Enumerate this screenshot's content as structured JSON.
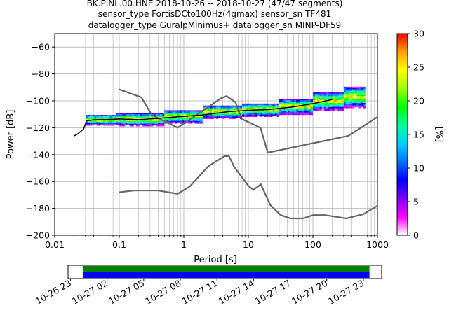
{
  "title_lines": [
    "BK.PINL.00.HNE   2018-10-26 -- 2018-10-27  (47/47 segments)",
    "sensor_type FortisDCto100Hz(4gmax) sensor_sn TF481",
    "datalogger_type GuralpMinimus+ datalogger_sn MINP-DF59"
  ],
  "chart_data": {
    "type": "heatmap",
    "xlabel": "Period [s]",
    "ylabel": "Power [dB]",
    "xscale": "log",
    "xlim": [
      0.01,
      1000
    ],
    "ylim": [
      -200,
      -50
    ],
    "x_ticks": [
      {
        "value": 0.01,
        "label": "0.01"
      },
      {
        "value": 0.1,
        "label": "0.1"
      },
      {
        "value": 1,
        "label": "1"
      },
      {
        "value": 10,
        "label": "10"
      },
      {
        "value": 100,
        "label": "100"
      },
      {
        "value": 1000,
        "label": "1000"
      }
    ],
    "y_ticks": [
      {
        "value": -60,
        "label": "−60"
      },
      {
        "value": -80,
        "label": "−80"
      },
      {
        "value": -100,
        "label": "−100"
      },
      {
        "value": -120,
        "label": "−120"
      },
      {
        "value": -140,
        "label": "−140"
      },
      {
        "value": -160,
        "label": "−160"
      },
      {
        "value": -180,
        "label": "−180"
      },
      {
        "value": -200,
        "label": "−200"
      }
    ],
    "grid": true,
    "colorbar": {
      "label": "[%]",
      "range": [
        0,
        30
      ],
      "ticks": [
        {
          "value": 0,
          "label": "0"
        },
        {
          "value": 5,
          "label": "5"
        },
        {
          "value": 10,
          "label": "10"
        },
        {
          "value": 15,
          "label": "15"
        },
        {
          "value": 20,
          "label": "20"
        },
        {
          "value": 25,
          "label": "25"
        },
        {
          "value": 30,
          "label": "30"
        }
      ],
      "colors": [
        "#ffffff",
        "#ff00ff",
        "#8000ff",
        "#0000ff",
        "#0070ff",
        "#00d0ff",
        "#00ffa0",
        "#00ff00",
        "#a0ff00",
        "#ffff00",
        "#ffa000",
        "#ff0000"
      ]
    },
    "noise_model_high": [
      {
        "x": 0.1,
        "y": -91.5
      },
      {
        "x": 0.22,
        "y": -97.4
      },
      {
        "x": 0.32,
        "y": -110.5
      },
      {
        "x": 0.8,
        "y": -120
      },
      {
        "x": 3.8,
        "y": -98
      },
      {
        "x": 4.6,
        "y": -96.5
      },
      {
        "x": 6.3,
        "y": -101
      },
      {
        "x": 7.9,
        "y": -113.5
      },
      {
        "x": 15.4,
        "y": -120
      },
      {
        "x": 20,
        "y": -138.5
      },
      {
        "x": 354.8,
        "y": -126
      },
      {
        "x": 1000,
        "y": -112
      }
    ],
    "noise_model_low": [
      {
        "x": 0.1,
        "y": -168
      },
      {
        "x": 0.17,
        "y": -166.7
      },
      {
        "x": 0.4,
        "y": -166.7
      },
      {
        "x": 0.8,
        "y": -169.2
      },
      {
        "x": 1.24,
        "y": -163.7
      },
      {
        "x": 2.4,
        "y": -148.6
      },
      {
        "x": 4.3,
        "y": -141.1
      },
      {
        "x": 5,
        "y": -141.1
      },
      {
        "x": 6,
        "y": -149
      },
      {
        "x": 10,
        "y": -163.2
      },
      {
        "x": 12,
        "y": -166.2
      },
      {
        "x": 15.6,
        "y": -162.1
      },
      {
        "x": 21.9,
        "y": -177.5
      },
      {
        "x": 31.6,
        "y": -185
      },
      {
        "x": 45,
        "y": -187.5
      },
      {
        "x": 70,
        "y": -187.5
      },
      {
        "x": 101,
        "y": -185
      },
      {
        "x": 154,
        "y": -185
      },
      {
        "x": 328,
        "y": -187.5
      },
      {
        "x": 600,
        "y": -184.4
      },
      {
        "x": 1000,
        "y": -178
      }
    ],
    "mean_psd": [
      {
        "x": 0.02,
        "y": -126
      },
      {
        "x": 0.022,
        "y": -125
      },
      {
        "x": 0.025,
        "y": -123
      },
      {
        "x": 0.028,
        "y": -121
      },
      {
        "x": 0.031,
        "y": -115
      },
      {
        "x": 0.04,
        "y": -114
      },
      {
        "x": 0.06,
        "y": -114
      },
      {
        "x": 0.1,
        "y": -113.5
      },
      {
        "x": 0.2,
        "y": -114
      },
      {
        "x": 0.4,
        "y": -113
      },
      {
        "x": 1,
        "y": -111.5
      },
      {
        "x": 2,
        "y": -110.5
      },
      {
        "x": 5,
        "y": -108
      },
      {
        "x": 10,
        "y": -107
      },
      {
        "x": 20,
        "y": -106.5
      },
      {
        "x": 50,
        "y": -104.5
      },
      {
        "x": 100,
        "y": -102
      },
      {
        "x": 200,
        "y": -99
      }
    ],
    "probability_bands": [
      {
        "x0": 0.03,
        "x1": 0.09,
        "ycenter": -114,
        "spread": 4
      },
      {
        "x0": 0.09,
        "x1": 0.5,
        "ycenter": -113.5,
        "spread": 5
      },
      {
        "x0": 0.5,
        "x1": 2,
        "ycenter": -111.5,
        "spread": 5
      },
      {
        "x0": 2,
        "x1": 8,
        "ycenter": -108,
        "spread": 5
      },
      {
        "x0": 8,
        "x1": 30,
        "ycenter": -106.5,
        "spread": 5
      },
      {
        "x0": 30,
        "x1": 100,
        "ycenter": -104,
        "spread": 6
      },
      {
        "x0": 100,
        "x1": 300,
        "ycenter": -100,
        "spread": 7
      },
      {
        "x0": 300,
        "x1": 650,
        "ycenter": -97,
        "spread": 8
      }
    ]
  },
  "timeline": {
    "ticks": [
      {
        "hour": 0,
        "label": "10-26 23"
      },
      {
        "hour": 3,
        "label": "10-27 02"
      },
      {
        "hour": 6,
        "label": "10-27 05"
      },
      {
        "hour": 9,
        "label": "10-27 08"
      },
      {
        "hour": 12,
        "label": "10-27 11"
      },
      {
        "hour": 15,
        "label": "10-27 14"
      },
      {
        "hour": 18,
        "label": "10-27 17"
      },
      {
        "hour": 21,
        "label": "10-27 20"
      },
      {
        "hour": 24,
        "label": "10-27 23"
      }
    ],
    "range_hours": [
      -0.2,
      25.5
    ],
    "coverage_hours": [
      1,
      24.5
    ],
    "colors": {
      "top": "#008000",
      "bottom": "#0000ff"
    }
  }
}
